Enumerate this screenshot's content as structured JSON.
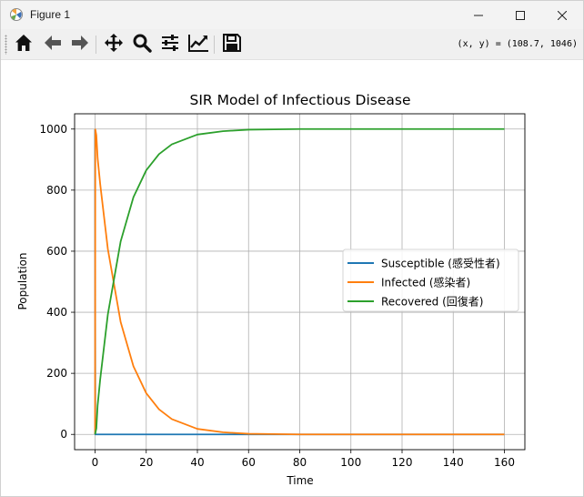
{
  "window": {
    "title": "Figure 1",
    "icons": {
      "app": "matplotlib-icon",
      "minimize": "minimize-icon",
      "maximize": "maximize-icon",
      "close": "close-icon"
    }
  },
  "toolbar": {
    "buttons": [
      {
        "name": "home-icon"
      },
      {
        "name": "back-arrow-icon"
      },
      {
        "name": "forward-arrow-icon"
      },
      {
        "name": "pan-icon"
      },
      {
        "name": "zoom-icon"
      },
      {
        "name": "subplots-icon"
      },
      {
        "name": "edit-axis-icon"
      },
      {
        "name": "save-icon"
      }
    ],
    "coordinates": "(x, y) = (108.7, 1046)"
  },
  "chart_data": {
    "type": "line",
    "title": "SIR Model of Infectious Disease",
    "xlabel": "Time",
    "ylabel": "Population",
    "xlim": [
      -8,
      168
    ],
    "ylim": [
      -50,
      1050
    ],
    "xticks": [
      0,
      20,
      40,
      60,
      80,
      100,
      120,
      140,
      160
    ],
    "yticks": [
      0,
      200,
      400,
      600,
      800,
      1000
    ],
    "grid": true,
    "legend_position": "center-right",
    "colors": {
      "susceptible": "#1f77b4",
      "infected": "#ff7f0e",
      "recovered": "#2ca02c"
    },
    "series": [
      {
        "name": "Susceptible (感受性者)",
        "x": [
          0,
          0.1,
          0.5,
          1,
          2,
          5,
          10,
          20,
          40,
          60,
          80,
          100,
          120,
          140,
          160
        ],
        "y": [
          999,
          0,
          0,
          0,
          0,
          0,
          0,
          0,
          0,
          0,
          0,
          0,
          0,
          0,
          0
        ]
      },
      {
        "name": "Infected (感染者)",
        "x": [
          0,
          0.1,
          0.5,
          1,
          2,
          5,
          10,
          15,
          20,
          25,
          30,
          40,
          50,
          60,
          70,
          80,
          100,
          120,
          140,
          160
        ],
        "y": [
          1,
          999,
          980,
          905,
          820,
          607,
          368,
          223,
          135,
          82,
          50,
          18,
          7,
          2,
          1,
          0,
          0,
          0,
          0,
          0
        ]
      },
      {
        "name": "Recovered (回復者)",
        "x": [
          0,
          0.5,
          1,
          2,
          5,
          10,
          15,
          20,
          25,
          30,
          40,
          50,
          60,
          70,
          80,
          100,
          120,
          140,
          160
        ],
        "y": [
          0,
          20,
          95,
          180,
          393,
          632,
          777,
          865,
          918,
          950,
          982,
          993,
          998,
          999,
          1000,
          1000,
          1000,
          1000,
          1000
        ]
      }
    ]
  }
}
